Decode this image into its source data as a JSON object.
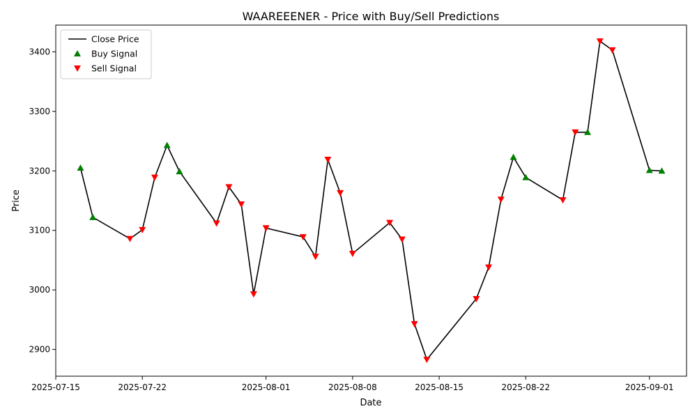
{
  "chart_data": {
    "type": "line",
    "title": "WAAREEENER - Price with Buy/Sell Predictions",
    "xlabel": "Date",
    "ylabel": "Price",
    "x_range": [
      "2025-07-15",
      "2025-09-04"
    ],
    "ylim": [
      2855,
      3445
    ],
    "x_ticks": [
      "2025-07-15",
      "2025-07-22",
      "2025-08-01",
      "2025-08-08",
      "2025-08-15",
      "2025-08-22",
      "2025-09-01"
    ],
    "y_ticks": [
      2900,
      3000,
      3100,
      3200,
      3300,
      3400
    ],
    "grid": false,
    "legend_position": "upper-left",
    "legend": [
      {
        "label": "Close Price",
        "kind": "line"
      },
      {
        "label": "Buy Signal",
        "kind": "buy"
      },
      {
        "label": "Sell Signal",
        "kind": "sell"
      }
    ],
    "series": [
      {
        "name": "Close Price",
        "color": "#000000",
        "points": [
          {
            "x": "2025-07-17",
            "y": 3205,
            "signal": "buy"
          },
          {
            "x": "2025-07-18",
            "y": 3122,
            "signal": "buy"
          },
          {
            "x": "2025-07-21",
            "y": 3086,
            "signal": "sell"
          },
          {
            "x": "2025-07-22",
            "y": 3101,
            "signal": "sell"
          },
          {
            "x": "2025-07-23",
            "y": 3189,
            "signal": "sell"
          },
          {
            "x": "2025-07-24",
            "y": 3243,
            "signal": "buy"
          },
          {
            "x": "2025-07-25",
            "y": 3199,
            "signal": "buy"
          },
          {
            "x": "2025-07-28",
            "y": 3112,
            "signal": "sell"
          },
          {
            "x": "2025-07-29",
            "y": 3173,
            "signal": "sell"
          },
          {
            "x": "2025-07-30",
            "y": 3144,
            "signal": "sell"
          },
          {
            "x": "2025-07-31",
            "y": 2993,
            "signal": "sell"
          },
          {
            "x": "2025-08-01",
            "y": 3104,
            "signal": "sell"
          },
          {
            "x": "2025-08-04",
            "y": 3089,
            "signal": "sell"
          },
          {
            "x": "2025-08-05",
            "y": 3056,
            "signal": "sell"
          },
          {
            "x": "2025-08-06",
            "y": 3219,
            "signal": "sell"
          },
          {
            "x": "2025-08-07",
            "y": 3163,
            "signal": "sell"
          },
          {
            "x": "2025-08-08",
            "y": 3061,
            "signal": "sell"
          },
          {
            "x": "2025-08-11",
            "y": 3113,
            "signal": "sell"
          },
          {
            "x": "2025-08-12",
            "y": 3085,
            "signal": "sell"
          },
          {
            "x": "2025-08-13",
            "y": 2943,
            "signal": "sell"
          },
          {
            "x": "2025-08-14",
            "y": 2883,
            "signal": "sell"
          },
          {
            "x": "2025-08-18",
            "y": 2985,
            "signal": "sell"
          },
          {
            "x": "2025-08-19",
            "y": 3038,
            "signal": "sell"
          },
          {
            "x": "2025-08-20",
            "y": 3152,
            "signal": "sell"
          },
          {
            "x": "2025-08-21",
            "y": 3223,
            "signal": "buy"
          },
          {
            "x": "2025-08-22",
            "y": 3189,
            "signal": "buy"
          },
          {
            "x": "2025-08-25",
            "y": 3151,
            "signal": "sell"
          },
          {
            "x": "2025-08-26",
            "y": 3265,
            "signal": "sell"
          },
          {
            "x": "2025-08-27",
            "y": 3265,
            "signal": "buy"
          },
          {
            "x": "2025-08-28",
            "y": 3418,
            "signal": "sell"
          },
          {
            "x": "2025-08-29",
            "y": 3403,
            "signal": "sell"
          },
          {
            "x": "2025-09-01",
            "y": 3201,
            "signal": "buy"
          },
          {
            "x": "2025-09-02",
            "y": 3200,
            "signal": "buy"
          }
        ]
      }
    ],
    "colors": {
      "line": "#000000",
      "buy": "#008000",
      "sell": "#ff0000"
    }
  }
}
